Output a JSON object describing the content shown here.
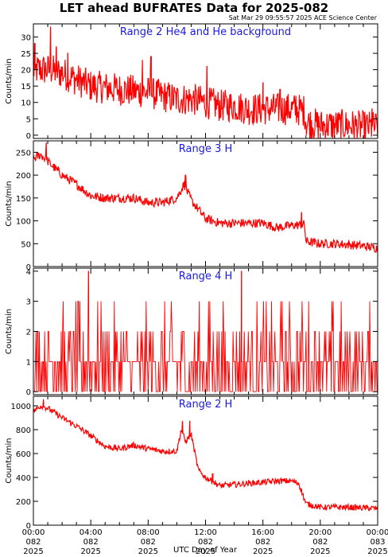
{
  "header": {
    "title": "LET ahead BUFRATES Data for 2025-082",
    "timestamp": "Sat Mar 29 09:55:57 2025 ACE Science Center"
  },
  "x_axis_label": "UTC Day of Year",
  "colors": {
    "series": "#ff0000",
    "panel_label": "#1a1ae6",
    "axes": "#000000"
  },
  "chart_data": [
    {
      "type": "line",
      "label": "Range 2 He4 and He background",
      "ylabel": "Counts/min",
      "ylim": [
        -1,
        34
      ],
      "yticks": [
        0,
        5,
        10,
        15,
        20,
        25,
        30
      ],
      "x": [
        0,
        1,
        2,
        3,
        4,
        6,
        8,
        9,
        10,
        11,
        12,
        13,
        14,
        15,
        16,
        17,
        18,
        18.9,
        19,
        20,
        21,
        22,
        23,
        24
      ],
      "values": [
        20,
        20,
        19,
        17,
        15,
        14,
        13,
        12,
        11,
        11,
        10,
        9,
        9,
        8,
        8,
        8,
        8,
        7.5,
        4,
        3,
        3,
        3,
        2.5,
        2.5
      ],
      "noise": 5,
      "discrete": false,
      "spikes": [
        [
          1.2,
          33
        ],
        [
          0.1,
          28
        ],
        [
          1.6,
          27
        ],
        [
          2.4,
          25
        ],
        [
          8.2,
          24
        ],
        [
          7.6,
          23
        ],
        [
          12.1,
          21
        ],
        [
          16.0,
          16
        ],
        [
          17.2,
          14
        ],
        [
          18.3,
          12
        ],
        [
          23.6,
          8
        ]
      ]
    },
    {
      "type": "line",
      "label": "Range 3 H",
      "ylabel": "Counts/min",
      "ylim": [
        0,
        275
      ],
      "yticks": [
        0,
        50,
        100,
        150,
        200,
        250
      ],
      "x": [
        0,
        0.5,
        1,
        2,
        3,
        4,
        5,
        6,
        7,
        8,
        9,
        10,
        10.5,
        11,
        12,
        13,
        14,
        15,
        16,
        17,
        18,
        18.9,
        19,
        20,
        21,
        22,
        23,
        24
      ],
      "values": [
        235,
        245,
        230,
        200,
        180,
        155,
        150,
        150,
        150,
        140,
        140,
        150,
        180,
        145,
        105,
        95,
        95,
        95,
        95,
        85,
        90,
        92,
        55,
        50,
        50,
        48,
        45,
        40
      ],
      "noise": 10,
      "discrete": false,
      "spikes": [
        [
          0.9,
          270
        ],
        [
          10.6,
          200
        ],
        [
          18.7,
          118
        ]
      ]
    },
    {
      "type": "line",
      "label": "Range 4 H",
      "ylabel": "Counts/min",
      "ylim": [
        -0.1,
        4.1
      ],
      "yticks": [
        0,
        1,
        2,
        3,
        4
      ],
      "x": [
        0,
        24
      ],
      "values": [
        1,
        1
      ],
      "noise": 0,
      "discrete": true,
      "spikes": [
        [
          3.85,
          4
        ],
        [
          14.5,
          4
        ]
      ]
    },
    {
      "type": "line",
      "label": "Range 2 H",
      "ylabel": "Counts/min",
      "ylim": [
        0,
        1080
      ],
      "yticks": [
        0,
        200,
        400,
        600,
        800,
        1000
      ],
      "x": [
        0,
        0.5,
        1,
        2,
        3,
        4,
        5,
        6,
        7,
        8,
        9,
        10,
        10.3,
        10.6,
        11,
        11.5,
        12,
        13,
        14,
        15,
        16,
        17,
        18,
        18.5,
        19,
        20,
        21,
        22,
        23,
        24
      ],
      "values": [
        950,
        1000,
        980,
        900,
        830,
        750,
        660,
        640,
        670,
        640,
        620,
        620,
        800,
        700,
        760,
        460,
        400,
        330,
        340,
        350,
        360,
        370,
        370,
        350,
        180,
        150,
        150,
        150,
        145,
        140
      ],
      "noise": 25,
      "discrete": false,
      "spikes": [
        [
          0.7,
          1055
        ],
        [
          10.4,
          870
        ],
        [
          10.9,
          870
        ],
        [
          12.5,
          430
        ]
      ]
    }
  ],
  "x_ticks": [
    {
      "time": "00:00",
      "doy": "082",
      "year": "2025"
    },
    {
      "time": "04:00",
      "doy": "082",
      "year": "2025"
    },
    {
      "time": "08:00",
      "doy": "082",
      "year": "2025"
    },
    {
      "time": "12:00",
      "doy": "082",
      "year": "2025"
    },
    {
      "time": "16:00",
      "doy": "082",
      "year": "2025"
    },
    {
      "time": "20:00",
      "doy": "082",
      "year": "2025"
    },
    {
      "time": "00:00",
      "doy": "083",
      "year": "2025"
    }
  ]
}
